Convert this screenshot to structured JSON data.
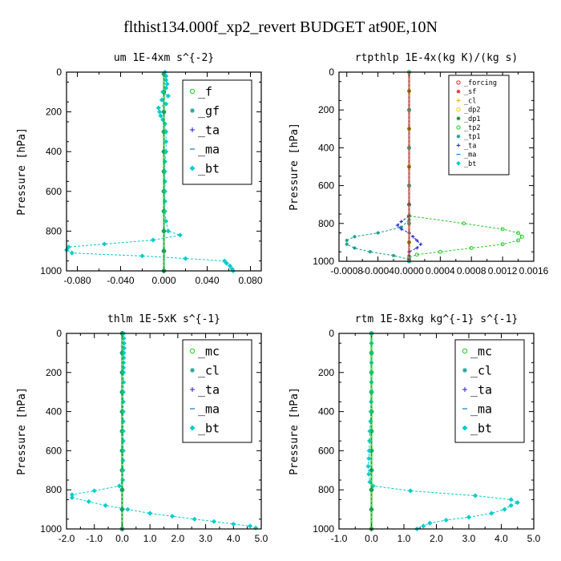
{
  "figure_title": "flthist134.000f_xp2_revert  BUDGET at90E,10N",
  "chart_data": [
    {
      "type": "line",
      "title": "um  1E-4xm s^{-2}",
      "ylabel": "Pressure [hPa]",
      "xlim": [
        -0.09,
        0.09
      ],
      "ylim": [
        1000,
        0
      ],
      "xticks": [
        -0.08,
        -0.04,
        0.0,
        0.04,
        0.08
      ],
      "xtick_labels": [
        "-0.080",
        "-0.040",
        "0.000",
        "0.040",
        "0.080"
      ],
      "yticks": [
        0,
        200,
        400,
        600,
        800,
        1000
      ],
      "ytick_labels": [
        "0",
        "200",
        "400",
        "600",
        "800",
        "1000"
      ],
      "legend_position": "top-right",
      "series": [
        {
          "name": "_f",
          "color": "#22cc22",
          "marker": "circle",
          "y": [
            10,
            100,
            200,
            300,
            400,
            500,
            600,
            700,
            800,
            900,
            1000
          ],
          "x": [
            0,
            0,
            0,
            0,
            0,
            0,
            0,
            0,
            0,
            0,
            0
          ]
        },
        {
          "name": "_gf",
          "color": "#1a9e8f",
          "marker": "star",
          "y": [
            10,
            100,
            200,
            300,
            400,
            500,
            600,
            700,
            800,
            900,
            1000
          ],
          "x": [
            0,
            0,
            0,
            0,
            0,
            0,
            0,
            0,
            0,
            0,
            0
          ]
        },
        {
          "name": "_ta",
          "color": "#2222cc",
          "marker": "plus",
          "y": [
            10,
            100,
            200,
            300,
            400,
            500,
            600,
            700,
            800,
            900,
            1000
          ],
          "x": [
            0,
            0,
            0,
            0,
            0,
            0,
            0,
            0,
            0,
            0,
            0
          ]
        },
        {
          "name": "_ma",
          "color": "#1177cc",
          "marker": "dash",
          "y": [
            10,
            100,
            200,
            300,
            400,
            500,
            600,
            700,
            800,
            900,
            1000
          ],
          "x": [
            0,
            0,
            0,
            0,
            0,
            0,
            0,
            0,
            0,
            0,
            0
          ]
        },
        {
          "name": "_bt",
          "color": "#00cccc",
          "marker": "diamond",
          "y": [
            0,
            20,
            40,
            60,
            80,
            100,
            120,
            140,
            160,
            180,
            200,
            220,
            240,
            260,
            300,
            350,
            400,
            450,
            500,
            550,
            600,
            650,
            700,
            750,
            800,
            820,
            845,
            865,
            880,
            895,
            910,
            925,
            938,
            950,
            962,
            975,
            990,
            1000
          ],
          "x": [
            0.001,
            0.002,
            0.002,
            0.003,
            0.002,
            -0.001,
            0.004,
            -0.002,
            0.002,
            -0.005,
            -0.004,
            -0.003,
            -0.001,
            0.001,
            0.002,
            0.002,
            0.002,
            0.001,
            0.001,
            0.001,
            0.001,
            0.001,
            0.001,
            0.002,
            0.004,
            0.015,
            -0.01,
            -0.055,
            -0.088,
            -0.09,
            -0.085,
            -0.02,
            0.02,
            0.056,
            0.058,
            0.061,
            0.063,
            0.064
          ]
        }
      ]
    },
    {
      "type": "line",
      "title": "rtpthlp  1E-4x(kg K)/(kg s)",
      "ylabel": "Pressure [hPa]",
      "xlim": [
        -0.0009,
        0.0016
      ],
      "ylim": [
        1000,
        0
      ],
      "xticks": [
        -0.0008,
        -0.0004,
        0.0,
        0.0004,
        0.0008,
        0.0012,
        0.0016
      ],
      "xtick_labels": [
        "-0.0008",
        "-0.0004",
        "0.0000",
        "0.0004",
        "0.0008",
        "0.0012",
        "0.0016"
      ],
      "yticks": [
        0,
        200,
        400,
        600,
        800,
        1000
      ],
      "ytick_labels": [
        "0",
        "200",
        "400",
        "600",
        "800",
        "1000"
      ],
      "legend_position": "top-right",
      "series": [
        {
          "name": "_forcing",
          "color": "#dd2222",
          "marker": "circle",
          "y": [
            0,
            100,
            200,
            300,
            400,
            500,
            600,
            700,
            800,
            900,
            1000
          ],
          "x": [
            0,
            0,
            0,
            0,
            0,
            0,
            0,
            0,
            0,
            0,
            0
          ]
        },
        {
          "name": "_sf",
          "color": "#dd3333",
          "marker": "star",
          "y": [
            0,
            100,
            200,
            300,
            400,
            500,
            600,
            700,
            800,
            900,
            1000
          ],
          "x": [
            0,
            0,
            0,
            0,
            0,
            0,
            0,
            0,
            0,
            0,
            0
          ]
        },
        {
          "name": "_cl",
          "color": "#ffaa00",
          "marker": "plus",
          "y": [
            0,
            100,
            200,
            300,
            400,
            500,
            600,
            700,
            800,
            900,
            1000
          ],
          "x": [
            0,
            0,
            0,
            0,
            0,
            0,
            0,
            0,
            0,
            0,
            0
          ]
        },
        {
          "name": "_dp2",
          "color": "#eecc00",
          "marker": "circle",
          "y": [
            0,
            100,
            200,
            300,
            400,
            500,
            600,
            700,
            800,
            900,
            1000
          ],
          "x": [
            0,
            0,
            0,
            0,
            0,
            0,
            0,
            0,
            0,
            0,
            0
          ]
        },
        {
          "name": "_dp1",
          "color": "#118811",
          "marker": "star",
          "y": [
            0,
            100,
            200,
            300,
            400,
            500,
            600,
            700,
            800,
            900,
            1000
          ],
          "x": [
            0,
            0,
            0,
            0,
            0,
            0,
            0,
            0,
            0,
            0,
            0
          ]
        },
        {
          "name": "_tp2",
          "color": "#22cc22",
          "marker": "circle",
          "y": [
            0,
            200,
            400,
            600,
            700,
            760,
            800,
            830,
            850,
            870,
            890,
            910,
            930,
            950,
            965,
            980,
            1000
          ],
          "x": [
            0,
            0,
            0,
            0,
            0,
            0,
            0.0007,
            0.0012,
            0.0014,
            0.00145,
            0.0014,
            0.0012,
            0.0008,
            0.0004,
            0.0001,
            0,
            0
          ]
        },
        {
          "name": "_tp1",
          "color": "#1a9e8f",
          "marker": "star",
          "y": [
            0,
            200,
            400,
            600,
            700,
            780,
            820,
            850,
            870,
            890,
            910,
            930,
            950,
            970,
            990,
            1000
          ],
          "x": [
            0,
            0,
            0,
            0,
            0,
            0,
            -0.0001,
            -0.0004,
            -0.0007,
            -0.0008,
            -0.0008,
            -0.0007,
            -0.0005,
            -0.0002,
            0,
            0
          ]
        },
        {
          "name": "_ta",
          "color": "#2222cc",
          "marker": "plus",
          "y": [
            0,
            200,
            400,
            600,
            700,
            760,
            790,
            810,
            830,
            850,
            870,
            890,
            910,
            930,
            950,
            970,
            990,
            1000
          ],
          "x": [
            0,
            0,
            0,
            0,
            0,
            0,
            -0.0001,
            -0.00015,
            -0.0001,
            0,
            5e-05,
            0.0001,
            0.00015,
            0.0001,
            0,
            0,
            0,
            0
          ]
        },
        {
          "name": "_ma",
          "color": "#1177cc",
          "marker": "dash",
          "y": [
            0,
            200,
            400,
            600,
            800,
            1000
          ],
          "x": [
            0,
            0,
            0,
            0,
            0,
            0
          ]
        },
        {
          "name": "_bt",
          "color": "#00cccc",
          "marker": "diamond",
          "y": [
            0,
            200,
            400,
            600,
            800,
            1000
          ],
          "x": [
            0,
            0,
            0,
            0,
            0,
            0
          ]
        }
      ]
    },
    {
      "type": "line",
      "title": "thlm  1E-5xK s^{-1}",
      "ylabel": "Pressure [hPa]",
      "xlim": [
        -2.0,
        5.0
      ],
      "ylim": [
        1000,
        0
      ],
      "xticks": [
        -2.0,
        -1.0,
        0.0,
        1.0,
        2.0,
        3.0,
        4.0,
        5.0
      ],
      "xtick_labels": [
        "-2.0",
        "-1.0",
        "0.0",
        "1.0",
        "2.0",
        "3.0",
        "4.0",
        "5.0"
      ],
      "yticks": [
        0,
        200,
        400,
        600,
        800,
        1000
      ],
      "ytick_labels": [
        "0",
        "200",
        "400",
        "600",
        "800",
        "1000"
      ],
      "legend_position": "top-right",
      "series": [
        {
          "name": "_mc",
          "color": "#22cc22",
          "marker": "circle",
          "y": [
            0,
            100,
            200,
            300,
            400,
            500,
            600,
            700,
            800,
            900,
            1000
          ],
          "x": [
            0,
            0,
            0,
            0,
            0,
            0,
            0,
            0,
            0,
            0,
            0
          ]
        },
        {
          "name": "_cl",
          "color": "#1a9e8f",
          "marker": "star",
          "y": [
            0,
            100,
            200,
            300,
            400,
            500,
            600,
            700,
            800,
            900,
            1000
          ],
          "x": [
            0,
            0,
            0,
            0,
            0,
            0,
            0,
            0,
            0,
            0,
            0
          ]
        },
        {
          "name": "_ta",
          "color": "#2222cc",
          "marker": "plus",
          "y": [
            0,
            100,
            200,
            300,
            400,
            500,
            600,
            700,
            800,
            900,
            1000
          ],
          "x": [
            0,
            0,
            0,
            0,
            0,
            0,
            0,
            0,
            0,
            0,
            0
          ]
        },
        {
          "name": "_ma",
          "color": "#1177cc",
          "marker": "dash",
          "y": [
            0,
            100,
            200,
            300,
            400,
            500,
            600,
            700,
            800,
            900,
            1000
          ],
          "x": [
            0,
            0,
            0,
            0,
            0,
            0,
            0,
            0,
            0,
            0,
            0
          ]
        },
        {
          "name": "_bt",
          "color": "#00cccc",
          "marker": "diamond",
          "y": [
            0,
            25,
            50,
            75,
            100,
            125,
            150,
            175,
            200,
            250,
            300,
            350,
            400,
            450,
            500,
            550,
            600,
            650,
            700,
            750,
            780,
            805,
            825,
            840,
            860,
            880,
            900,
            920,
            935,
            950,
            962,
            975,
            985,
            995
          ],
          "x": [
            0.05,
            0.06,
            0.07,
            0.07,
            0.06,
            0.06,
            0.05,
            0.05,
            0.05,
            0.05,
            0.04,
            0.04,
            0.04,
            0.04,
            0.04,
            0.04,
            0.04,
            0.03,
            0.03,
            0.02,
            -0.1,
            -1.0,
            -1.8,
            -1.8,
            -1.2,
            -0.6,
            0.2,
            1.0,
            1.8,
            2.6,
            3.3,
            4.0,
            4.6,
            4.8
          ]
        }
      ]
    },
    {
      "type": "line",
      "title": "rtm  1E-8xkg kg^{-1} s^{-1}",
      "ylabel": "Pressure [hPa]",
      "xlim": [
        -1.0,
        5.0
      ],
      "ylim": [
        1000,
        0
      ],
      "xticks": [
        -1.0,
        0.0,
        1.0,
        2.0,
        3.0,
        4.0,
        5.0
      ],
      "xtick_labels": [
        "-1.0",
        "0.0",
        "1.0",
        "2.0",
        "3.0",
        "4.0",
        "5.0"
      ],
      "yticks": [
        0,
        200,
        400,
        600,
        800,
        1000
      ],
      "ytick_labels": [
        "0",
        "200",
        "400",
        "600",
        "800",
        "1000"
      ],
      "legend_position": "top-right",
      "series": [
        {
          "name": "_mc",
          "color": "#22cc22",
          "marker": "circle",
          "y": [
            0,
            100,
            200,
            300,
            400,
            500,
            600,
            700,
            800,
            900,
            1000
          ],
          "x": [
            0,
            0,
            0,
            0,
            0,
            0,
            0,
            0,
            0,
            0,
            0
          ]
        },
        {
          "name": "_cl",
          "color": "#1a9e8f",
          "marker": "star",
          "y": [
            0,
            100,
            200,
            300,
            400,
            500,
            600,
            700,
            800,
            900,
            1000
          ],
          "x": [
            0,
            0,
            0,
            0,
            0,
            0,
            0,
            0,
            0,
            0,
            0
          ]
        },
        {
          "name": "_ta",
          "color": "#2222cc",
          "marker": "plus",
          "y": [
            0,
            100,
            200,
            300,
            400,
            500,
            600,
            700,
            800,
            900,
            1000
          ],
          "x": [
            0,
            0,
            0,
            0,
            0,
            0,
            0,
            0,
            0,
            0,
            0
          ]
        },
        {
          "name": "_ma",
          "color": "#1177cc",
          "marker": "dash",
          "y": [
            0,
            100,
            200,
            300,
            400,
            500,
            600,
            700,
            800,
            900,
            1000
          ],
          "x": [
            0,
            0,
            0,
            0,
            0,
            0,
            0,
            0,
            0,
            0,
            0
          ]
        },
        {
          "name": "_bt",
          "color": "#00cccc",
          "marker": "diamond",
          "y": [
            0,
            50,
            100,
            150,
            200,
            250,
            300,
            350,
            400,
            450,
            500,
            550,
            600,
            640,
            680,
            720,
            760,
            780,
            805,
            830,
            850,
            865,
            880,
            900,
            920,
            940,
            955,
            970,
            985,
            1000
          ],
          "x": [
            0,
            0,
            0,
            0,
            0,
            0,
            0,
            -0.01,
            -0.02,
            -0.03,
            -0.05,
            -0.06,
            -0.07,
            -0.08,
            -0.1,
            -0.08,
            -0.05,
            0.05,
            1.2,
            3.2,
            4.3,
            4.5,
            4.3,
            4.1,
            3.7,
            3.0,
            2.3,
            1.8,
            1.6,
            1.4
          ]
        }
      ]
    }
  ]
}
